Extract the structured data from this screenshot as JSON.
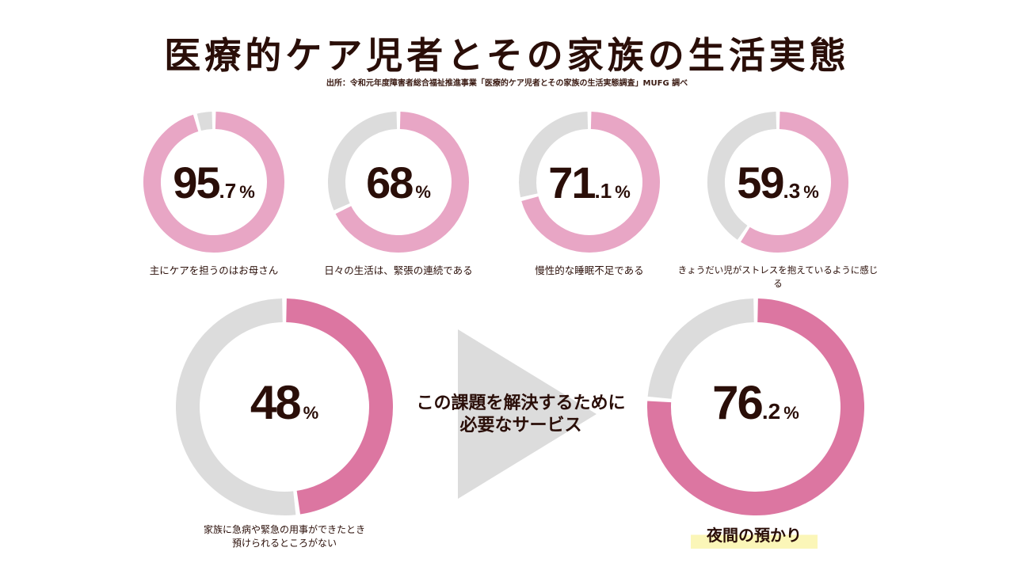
{
  "title": "医療的ケア児者とその家族の生活実態",
  "source": "出所：令和元年度障害者総合福祉推進事業「医療的ケア児者とその家族の生活実態調査」MUFG 調べ",
  "middle_text": [
    "この課題を解決するために",
    "必要なサービス"
  ],
  "colors": {
    "light_pink": "#e8a6c5",
    "deep_pink": "#dc76a1",
    "track_gray": "#dcdcdc",
    "arrow_gray": "#dcdcdc",
    "text_brown": "#2a0e08",
    "highlight_yellow": "#fbf6b8"
  },
  "chart_data": [
    {
      "type": "pie",
      "values": [
        95.7,
        4.3
      ],
      "int": "95",
      "dec": ".7",
      "unit": "%",
      "label": "主にケアを担うのはお母さん",
      "color": "light_pink"
    },
    {
      "type": "pie",
      "values": [
        68,
        32
      ],
      "int": "68",
      "dec": "",
      "unit": "%",
      "label": "日々の生活は、緊張の連続である",
      "color": "light_pink"
    },
    {
      "type": "pie",
      "values": [
        71.1,
        28.9
      ],
      "int": "71",
      "dec": ".1",
      "unit": "%",
      "label": "慢性的な睡眠不足である",
      "color": "light_pink"
    },
    {
      "type": "pie",
      "values": [
        59.3,
        40.7
      ],
      "int": "59",
      "dec": ".3",
      "unit": "%",
      "label": "きょうだい児がストレスを抱えているように感じる",
      "color": "light_pink"
    },
    {
      "type": "pie",
      "values": [
        48,
        52
      ],
      "int": "48",
      "dec": "",
      "unit": "%",
      "label": [
        "家族に急病や緊急の用事ができたとき",
        "預けられるところがない"
      ],
      "color": "deep_pink"
    },
    {
      "type": "pie",
      "values": [
        76.2,
        23.8
      ],
      "int": "76",
      "dec": ".2",
      "unit": "%",
      "label": "夜間の預かり",
      "color": "deep_pink"
    }
  ]
}
